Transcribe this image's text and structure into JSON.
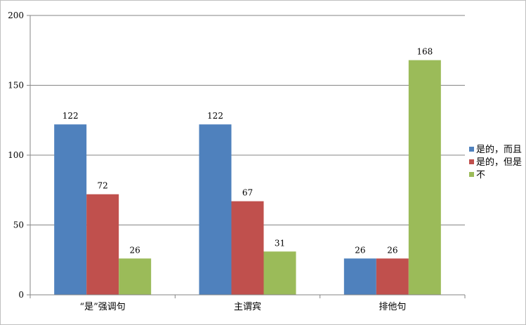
{
  "chart_data": {
    "type": "bar",
    "title": "",
    "xlabel": "",
    "ylabel": "",
    "categories": [
      "“是”强调句",
      "主谓宾",
      "排他句"
    ],
    "series": [
      {
        "name": "是的，而且",
        "color": "#4F81BD",
        "values": [
          122,
          122,
          26
        ]
      },
      {
        "name": "是的，但是",
        "color": "#C0504D",
        "values": [
          72,
          67,
          26
        ]
      },
      {
        "name": "不",
        "color": "#9BBB59",
        "values": [
          26,
          31,
          168
        ]
      }
    ],
    "ylim": [
      0,
      200
    ],
    "yticks": [
      0,
      50,
      100,
      150,
      200
    ],
    "grid": true,
    "legend_position": "right"
  }
}
